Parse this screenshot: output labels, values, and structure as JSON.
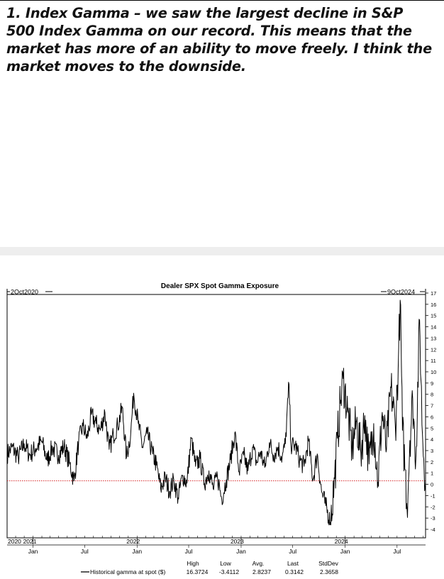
{
  "headline": "1. Index Gamma – we saw the largest decline in S&P 500 Index Gamma on our record. This means that the market has more of an ability to move freely. I think the market moves to the downside.",
  "chart_data": {
    "type": "line",
    "title": "Dealer SPX Spot Gamma Exposure",
    "start_label": "2Oct2020",
    "end_label": "9Oct2024",
    "ylim": [
      -4,
      17
    ],
    "y_ticks": [
      17,
      16,
      15,
      14,
      13,
      12,
      11,
      10,
      9,
      8,
      7,
      6,
      5,
      4,
      3,
      2,
      1,
      0,
      -1,
      -2,
      -3,
      -4
    ],
    "reference_line": {
      "y": 0.3142,
      "color": "#d62728",
      "style": "dotted"
    },
    "line_color": "#000000",
    "grid": false,
    "years": [
      "2020",
      "2021",
      "2022",
      "2023",
      "2024"
    ],
    "months": [
      "Jan",
      "Jul",
      "Jan",
      "Jul",
      "Jan",
      "Jul",
      "Jan",
      "Jul"
    ],
    "series": [
      {
        "name": "Historical gamma at spot ($)",
        "anchors": [
          [
            "2020-10-02",
            2.7
          ],
          [
            "2020-10-20",
            3.3
          ],
          [
            "2020-11-10",
            2.4
          ],
          [
            "2020-12-01",
            3.6
          ],
          [
            "2020-12-20",
            2.6
          ],
          [
            "2021-01-10",
            3.2
          ],
          [
            "2021-02-01",
            3.8
          ],
          [
            "2021-02-20",
            2.1
          ],
          [
            "2021-03-10",
            3.3
          ],
          [
            "2021-04-01",
            2.6
          ],
          [
            "2021-04-20",
            3.4
          ],
          [
            "2021-05-10",
            1.8
          ],
          [
            "2021-05-25",
            0.3
          ],
          [
            "2021-06-10",
            3.8
          ],
          [
            "2021-06-25",
            5.2
          ],
          [
            "2021-07-10",
            4.1
          ],
          [
            "2021-07-25",
            6.2
          ],
          [
            "2021-08-10",
            5.4
          ],
          [
            "2021-08-25",
            4.8
          ],
          [
            "2021-09-10",
            6.4
          ],
          [
            "2021-09-25",
            3.1
          ],
          [
            "2021-10-10",
            4.4
          ],
          [
            "2021-10-25",
            5.2
          ],
          [
            "2021-11-10",
            6.8
          ],
          [
            "2021-11-25",
            2.4
          ],
          [
            "2021-12-10",
            4.6
          ],
          [
            "2021-12-20",
            8.1
          ],
          [
            "2022-01-05",
            5.4
          ],
          [
            "2022-01-20",
            3.3
          ],
          [
            "2022-02-05",
            4.5
          ],
          [
            "2022-02-25",
            2.7
          ],
          [
            "2022-03-10",
            1.7
          ],
          [
            "2022-03-25",
            -0.4
          ],
          [
            "2022-04-10",
            0.6
          ],
          [
            "2022-04-25",
            -0.6
          ],
          [
            "2022-05-10",
            0.4
          ],
          [
            "2022-05-25",
            -1.2
          ],
          [
            "2022-06-10",
            0.8
          ],
          [
            "2022-06-25",
            0.1
          ],
          [
            "2022-07-10",
            4.1
          ],
          [
            "2022-07-25",
            1.6
          ],
          [
            "2022-08-10",
            2.3
          ],
          [
            "2022-08-25",
            0.1
          ],
          [
            "2022-09-10",
            1.2
          ],
          [
            "2022-09-25",
            -0.4
          ],
          [
            "2022-10-10",
            0.7
          ],
          [
            "2022-10-25",
            -1.3
          ],
          [
            "2022-11-10",
            0.4
          ],
          [
            "2022-11-25",
            2.2
          ],
          [
            "2022-12-10",
            4.6
          ],
          [
            "2022-12-25",
            1.1
          ],
          [
            "2023-01-10",
            2.6
          ],
          [
            "2023-01-25",
            1.2
          ],
          [
            "2023-02-10",
            3.3
          ],
          [
            "2023-02-25",
            1.9
          ],
          [
            "2023-03-10",
            2.9
          ],
          [
            "2023-03-25",
            1.5
          ],
          [
            "2023-04-10",
            3.7
          ],
          [
            "2023-04-25",
            2.6
          ],
          [
            "2023-05-10",
            3.3
          ],
          [
            "2023-05-25",
            2.4
          ],
          [
            "2023-06-05",
            3.6
          ],
          [
            "2023-06-18",
            8.9
          ],
          [
            "2023-06-25",
            3.4
          ],
          [
            "2023-07-10",
            3.5
          ],
          [
            "2023-07-25",
            2.2
          ],
          [
            "2023-08-10",
            1.6
          ],
          [
            "2023-08-25",
            3.9
          ],
          [
            "2023-09-10",
            0.4
          ],
          [
            "2023-09-25",
            2.7
          ],
          [
            "2023-10-10",
            -0.6
          ],
          [
            "2023-10-25",
            -1.9
          ],
          [
            "2023-11-10",
            -3.4
          ],
          [
            "2023-11-25",
            0.5
          ],
          [
            "2023-12-05",
            4.1
          ],
          [
            "2023-12-15",
            7.2
          ],
          [
            "2023-12-25",
            9.4
          ],
          [
            "2024-01-10",
            6.4
          ],
          [
            "2024-01-25",
            3.2
          ],
          [
            "2024-02-10",
            5.6
          ],
          [
            "2024-02-25",
            2.8
          ],
          [
            "2024-03-10",
            6.1
          ],
          [
            "2024-03-25",
            1.8
          ],
          [
            "2024-04-10",
            5.4
          ],
          [
            "2024-04-25",
            0.2
          ],
          [
            "2024-05-10",
            6.4
          ],
          [
            "2024-05-25",
            3.1
          ],
          [
            "2024-06-10",
            8.6
          ],
          [
            "2024-06-25",
            5.1
          ],
          [
            "2024-07-05",
            10.3
          ],
          [
            "2024-07-12",
            16.37
          ],
          [
            "2024-07-20",
            4.8
          ],
          [
            "2024-07-30",
            1.3
          ],
          [
            "2024-08-05",
            -2.2
          ],
          [
            "2024-08-15",
            3.9
          ],
          [
            "2024-08-25",
            7.6
          ],
          [
            "2024-09-05",
            2.2
          ],
          [
            "2024-09-18",
            14.6
          ],
          [
            "2024-09-28",
            4.5
          ],
          [
            "2024-10-09",
            0.3
          ]
        ]
      }
    ],
    "stats": {
      "headers": [
        "High",
        "Low",
        "Avg.",
        "Last",
        "StdDev"
      ],
      "values": [
        "16.3724",
        "-3.4112",
        "2.8237",
        "0.3142",
        "2.3658"
      ]
    }
  }
}
